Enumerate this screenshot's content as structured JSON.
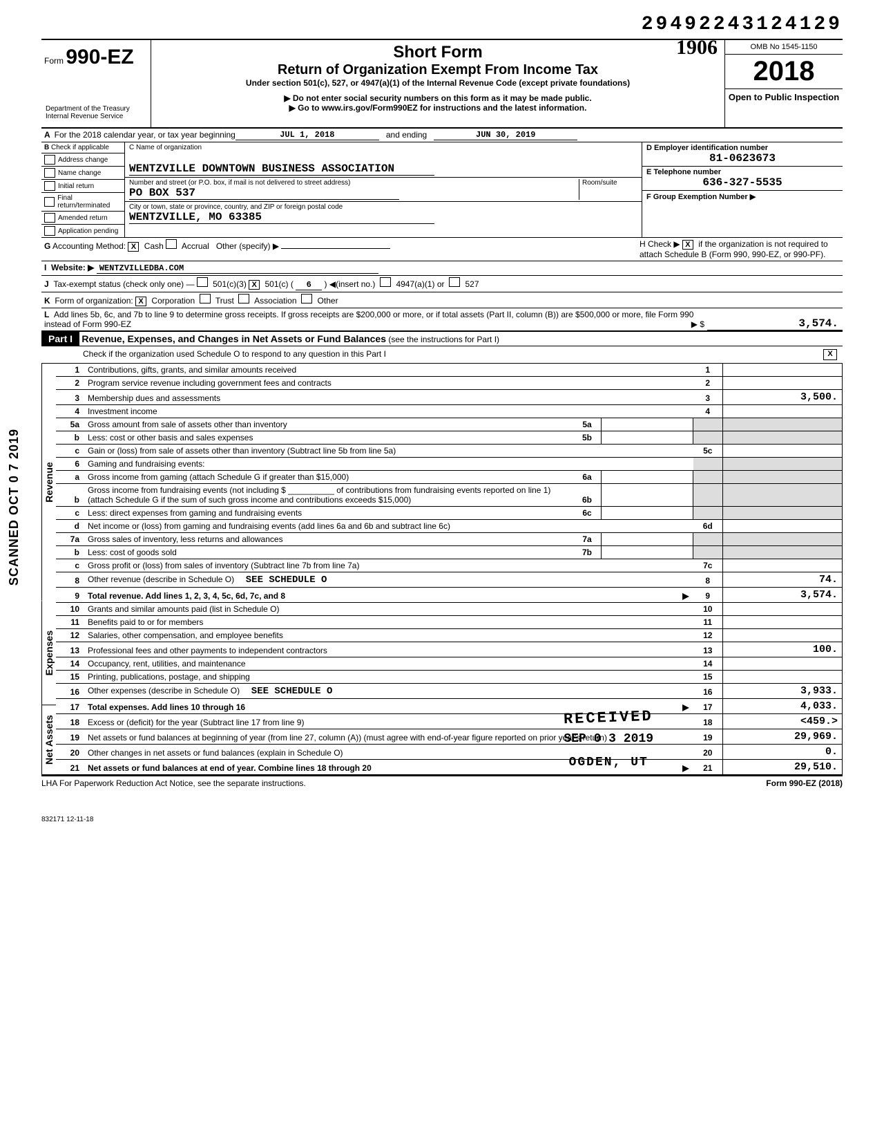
{
  "doc_id": "29492243124129",
  "form": {
    "prefix": "Form",
    "number": "990-EZ",
    "title1": "Short Form",
    "title2": "Return of Organization Exempt From Income Tax",
    "subtitle": "Under section 501(c), 527, or 4947(a)(1) of the Internal Revenue Code (except private foundations)",
    "note1": "Do not enter social security numbers on this form as it may be made public.",
    "note2": "Go to www.irs.gov/Form990EZ for instructions and the latest information.",
    "omb": "OMB No 1545-1150",
    "year": "2018",
    "open_public": "Open to Public Inspection",
    "dept": "Department of the Treasury\nInternal Revenue Service"
  },
  "handwriting": "1906",
  "row_a": {
    "label": "For the 2018 calendar year, or tax year beginning",
    "begin": "JUL 1, 2018",
    "mid": "and ending",
    "end": "JUN 30, 2019"
  },
  "section_b": {
    "header": "Check if applicable",
    "checks": [
      {
        "label": "Address change",
        "checked": ""
      },
      {
        "label": "Name change",
        "checked": ""
      },
      {
        "label": "Initial return",
        "checked": ""
      },
      {
        "label": "Final return/terminated",
        "checked": ""
      },
      {
        "label": "Amended return",
        "checked": ""
      },
      {
        "label": "Application pending",
        "checked": ""
      }
    ],
    "c_label": "C Name of organization",
    "c_val": "WENTZVILLE DOWNTOWN BUSINESS ASSOCIATION",
    "street_label": "Number and street (or P.O. box, if mail is not delivered to street address)",
    "room_label": "Room/suite",
    "street_val": "PO BOX 537",
    "city_label": "City or town, state or province, country, and ZIP or foreign postal code",
    "city_val": "WENTZVILLE, MO  63385",
    "d_label": "D Employer identification number",
    "d_val": "81-0623673",
    "e_label": "E Telephone number",
    "e_val": "636-327-5535",
    "f_label": "F Group Exemption Number ▶",
    "f_val": ""
  },
  "lines": {
    "g": "Accounting Method:",
    "g_cash": "X",
    "g_cash_lbl": "Cash",
    "g_accrual": "",
    "g_accrual_lbl": "Accrual",
    "g_other_lbl": "Other (specify) ▶",
    "h": "H Check ▶",
    "h_x": "X",
    "h_rest": "if the organization is not required to attach Schedule B (Form 990, 990-EZ, or 990-PF).",
    "i": "Website: ▶",
    "i_val": "WENTZVILLEDBA.COM",
    "j": "Tax-exempt status (check only one) —",
    "j_501c3": "",
    "j_501c": "X",
    "j_501c_no": "6",
    "j_insert": "◀(insert no.)",
    "j_4947": "4947(a)(1) or",
    "j_527": "527",
    "k": "Form of organization:",
    "k_corp": "X",
    "k_corp_lbl": "Corporation",
    "k_trust": "",
    "k_trust_lbl": "Trust",
    "k_assoc": "",
    "k_assoc_lbl": "Association",
    "k_other": "",
    "k_other_lbl": "Other",
    "l": "Add lines 5b, 6c, and 7b to line 9 to determine gross receipts. If gross receipts are $200,000 or more, or if total assets (Part II, column (B)) are $500,000 or more, file Form 990 instead of Form 990-EZ",
    "l_arrow": "▶  $",
    "l_val": "3,574."
  },
  "part1": {
    "label": "Part I",
    "title": "Revenue, Expenses, and Changes in Net Assets or Fund Balances",
    "title_note": "(see the instructions for Part I)",
    "check_line": "Check if the organization used Schedule O to respond to any question in this Part I",
    "check_x": "X"
  },
  "sections": {
    "revenue": "Revenue",
    "expenses": "Expenses",
    "net_assets": "Net Assets"
  },
  "rows": [
    {
      "sec": "revenue",
      "no": "1",
      "desc": "Contributions, gifts, grants, and similar amounts received",
      "bigno": "1",
      "bigval": ""
    },
    {
      "sec": "revenue",
      "no": "2",
      "desc": "Program service revenue including government fees and contracts",
      "bigno": "2",
      "bigval": ""
    },
    {
      "sec": "revenue",
      "no": "3",
      "desc": "Membership dues and assessments",
      "bigno": "3",
      "bigval": "3,500."
    },
    {
      "sec": "revenue",
      "no": "4",
      "desc": "Investment income",
      "bigno": "4",
      "bigval": ""
    },
    {
      "sec": "revenue",
      "no": "5a",
      "desc": "Gross amount from sale of assets other than inventory",
      "minino": "5a",
      "minival": "",
      "gray": true
    },
    {
      "sec": "revenue",
      "no": "b",
      "desc": "Less: cost or other basis and sales expenses",
      "minino": "5b",
      "minival": "",
      "gray": true
    },
    {
      "sec": "revenue",
      "no": "c",
      "desc": "Gain or (loss) from sale of assets other than inventory (Subtract line 5b from line 5a)",
      "bigno": "5c",
      "bigval": ""
    },
    {
      "sec": "revenue",
      "no": "6",
      "desc": "Gaming and fundraising events:",
      "gray": true,
      "nobig": true
    },
    {
      "sec": "revenue",
      "no": "a",
      "desc": "Gross income from gaming (attach Schedule G if greater than $15,000)",
      "minino": "6a",
      "minival": "",
      "gray": true
    },
    {
      "sec": "revenue",
      "no": "b",
      "desc": "Gross income from fundraising events (not including $ __________ of contributions from fundraising events reported on line 1) (attach Schedule G if the sum of such gross income and contributions exceeds $15,000)",
      "minino": "6b",
      "minival": "",
      "gray": true
    },
    {
      "sec": "revenue",
      "no": "c",
      "desc": "Less: direct expenses from gaming and fundraising events",
      "minino": "6c",
      "minival": "",
      "gray": true
    },
    {
      "sec": "revenue",
      "no": "d",
      "desc": "Net income or (loss) from gaming and fundraising events (add lines 6a and 6b and subtract line 6c)",
      "bigno": "6d",
      "bigval": ""
    },
    {
      "sec": "revenue",
      "no": "7a",
      "desc": "Gross sales of inventory, less returns and allowances",
      "minino": "7a",
      "minival": "",
      "gray": true
    },
    {
      "sec": "revenue",
      "no": "b",
      "desc": "Less: cost of goods sold",
      "minino": "7b",
      "minival": "",
      "gray": true
    },
    {
      "sec": "revenue",
      "no": "c",
      "desc": "Gross profit or (loss) from sales of inventory (Subtract line 7b from line 7a)",
      "bigno": "7c",
      "bigval": ""
    },
    {
      "sec": "revenue",
      "no": "8",
      "desc": "Other revenue (describe in Schedule O)",
      "extra": "SEE SCHEDULE O",
      "bigno": "8",
      "bigval": "74."
    },
    {
      "sec": "revenue",
      "no": "9",
      "desc": "Total revenue. Add lines 1, 2, 3, 4, 5c, 6d, 7c, and 8",
      "arrow": "▶",
      "bigno": "9",
      "bigval": "3,574.",
      "bold": true
    },
    {
      "sec": "expenses",
      "no": "10",
      "desc": "Grants and similar amounts paid (list in Schedule O)",
      "bigno": "10",
      "bigval": ""
    },
    {
      "sec": "expenses",
      "no": "11",
      "desc": "Benefits paid to or for members",
      "bigno": "11",
      "bigval": ""
    },
    {
      "sec": "expenses",
      "no": "12",
      "desc": "Salaries, other compensation, and employee benefits",
      "bigno": "12",
      "bigval": ""
    },
    {
      "sec": "expenses",
      "no": "13",
      "desc": "Professional fees and other payments to independent contractors",
      "bigno": "13",
      "bigval": "100."
    },
    {
      "sec": "expenses",
      "no": "14",
      "desc": "Occupancy, rent, utilities, and maintenance",
      "bigno": "14",
      "bigval": ""
    },
    {
      "sec": "expenses",
      "no": "15",
      "desc": "Printing, publications, postage, and shipping",
      "bigno": "15",
      "bigval": ""
    },
    {
      "sec": "expenses",
      "no": "16",
      "desc": "Other expenses (describe in Schedule O)",
      "extra": "SEE SCHEDULE O",
      "bigno": "16",
      "bigval": "3,933."
    },
    {
      "sec": "expenses",
      "no": "17",
      "desc": "Total expenses. Add lines 10 through 16",
      "arrow": "▶",
      "bigno": "17",
      "bigval": "4,033.",
      "bold": true
    },
    {
      "sec": "net_assets",
      "no": "18",
      "desc": "Excess or (deficit) for the year (Subtract line 17 from line 9)",
      "bigno": "18",
      "bigval": "<459.>"
    },
    {
      "sec": "net_assets",
      "no": "19",
      "desc": "Net assets or fund balances at beginning of year (from line 27, column (A)) (must agree with end-of-year figure reported on prior year's return)",
      "bigno": "19",
      "bigval": "29,969."
    },
    {
      "sec": "net_assets",
      "no": "20",
      "desc": "Other changes in net assets or fund balances (explain in Schedule O)",
      "bigno": "20",
      "bigval": "0."
    },
    {
      "sec": "net_assets",
      "no": "21",
      "desc": "Net assets or fund balances at end of year. Combine lines 18 through 20",
      "arrow": "▶",
      "bigno": "21",
      "bigval": "29,510.",
      "bold": true
    }
  ],
  "footer": {
    "lha": "LHA  For Paperwork Reduction Act Notice, see the separate instructions.",
    "form": "Form 990-EZ (2018)",
    "code": "832171  12-11-18"
  },
  "stamps": {
    "received": "RECEIVED",
    "date": "SEP 0 3 2019",
    "ogden": "OGDEN, UT",
    "scanned": "SCANNED OCT 0 7 2019"
  }
}
